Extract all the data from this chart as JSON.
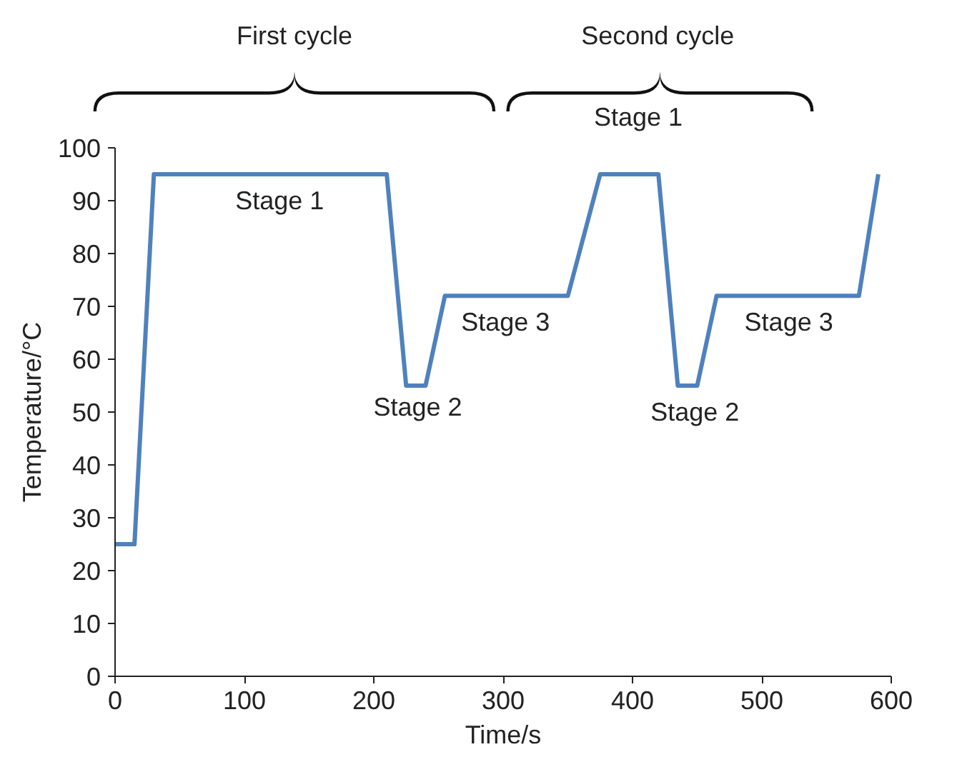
{
  "chart_data": {
    "type": "line",
    "xlabel": "Time/s",
    "ylabel": "Temperature/°C",
    "x": [
      0,
      15,
      30,
      210,
      225,
      240,
      255,
      350,
      375,
      420,
      435,
      450,
      465,
      575,
      590
    ],
    "series": [
      {
        "color": "#4f81bd",
        "values": [
          25,
          25,
          95,
          95,
          55,
          55,
          72,
          72,
          95,
          95,
          55,
          55,
          72,
          72,
          95
        ]
      }
    ],
    "xlim": [
      0,
      600
    ],
    "ylim": [
      0,
      100
    ],
    "xticks": [
      0,
      100,
      200,
      300,
      400,
      500,
      600
    ],
    "yticks": [
      0,
      10,
      20,
      30,
      40,
      50,
      60,
      70,
      80,
      90,
      100
    ],
    "grid": false,
    "marker": "none",
    "line_style": "solid",
    "annotations": [
      "First cycle",
      "Second cycle",
      "Stage 1",
      "Stage 2",
      "Stage 3",
      "Stage 1",
      "Stage 2",
      "Stage 3"
    ]
  }
}
